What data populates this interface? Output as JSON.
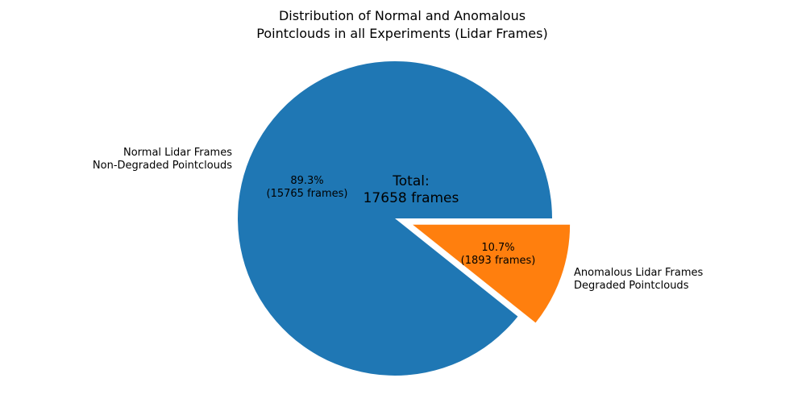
{
  "chart_data": {
    "type": "pie",
    "title": "Distribution of Normal and Anomalous\nPointclouds in all Experiments (Lidar Frames)",
    "total_frames": 17658,
    "center_annotation": "Total:\n17658 frames",
    "start_angle_deg": 0,
    "counterclockwise": true,
    "background_color": "#ffffff",
    "text_color": "#000000",
    "slices": [
      {
        "label": "Normal Lidar Frames\nNon-Degraded Pointclouds",
        "value": 15765,
        "pct": 89.3,
        "pct_label": "89.3%\n(15765 frames)",
        "color": "#1f77b4",
        "explode": 0
      },
      {
        "label": "Anomalous Lidar Frames\nDegraded Pointclouds",
        "value": 1893,
        "pct": 10.7,
        "pct_label": "10.7%\n(1893 frames)",
        "color": "#ff7f0e",
        "explode": 0.12
      }
    ]
  }
}
